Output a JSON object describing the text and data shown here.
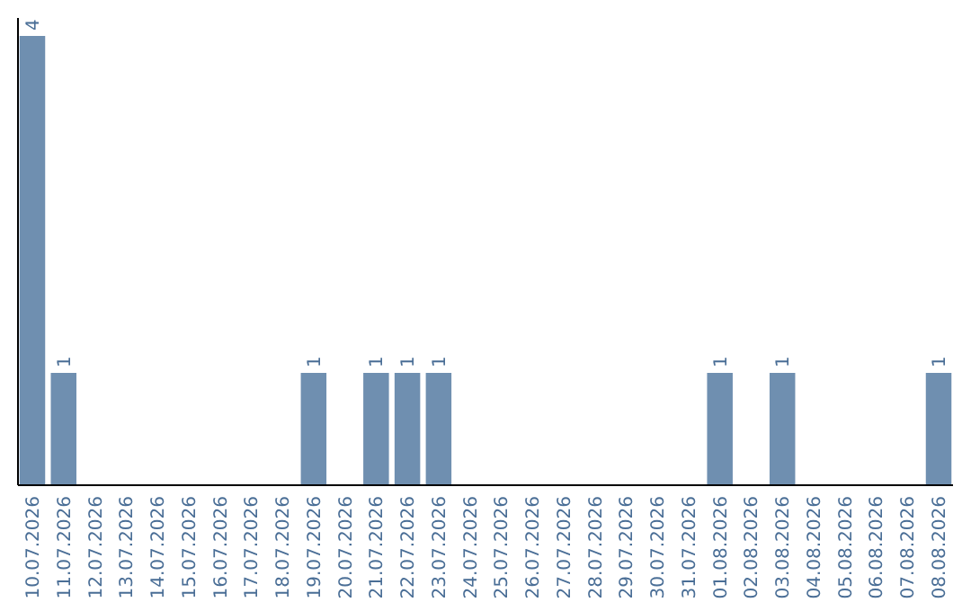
{
  "chart_data": {
    "type": "bar",
    "categories": [
      "10.07.2026",
      "11.07.2026",
      "12.07.2026",
      "13.07.2026",
      "14.07.2026",
      "15.07.2026",
      "16.07.2026",
      "17.07.2026",
      "18.07.2026",
      "19.07.2026",
      "20.07.2026",
      "21.07.2026",
      "22.07.2026",
      "23.07.2026",
      "24.07.2026",
      "25.07.2026",
      "26.07.2026",
      "27.07.2026",
      "28.07.2026",
      "29.07.2026",
      "30.07.2026",
      "31.07.2026",
      "01.08.2026",
      "02.08.2026",
      "03.08.2026",
      "04.08.2026",
      "05.08.2026",
      "06.08.2026",
      "07.08.2026",
      "08.08.2026"
    ],
    "values": [
      4,
      1,
      0,
      0,
      0,
      0,
      0,
      0,
      0,
      1,
      0,
      1,
      1,
      1,
      0,
      0,
      0,
      0,
      0,
      0,
      0,
      0,
      1,
      0,
      1,
      0,
      0,
      0,
      0,
      1
    ],
    "value_labels": [
      "4",
      "1",
      null,
      null,
      null,
      null,
      null,
      null,
      null,
      "1",
      null,
      "1",
      "1",
      "1",
      null,
      null,
      null,
      null,
      null,
      null,
      null,
      null,
      "1",
      null,
      "1",
      null,
      null,
      null,
      null,
      "1"
    ],
    "color": "#6f8fb0",
    "ylim": [
      0,
      4.16
    ]
  }
}
